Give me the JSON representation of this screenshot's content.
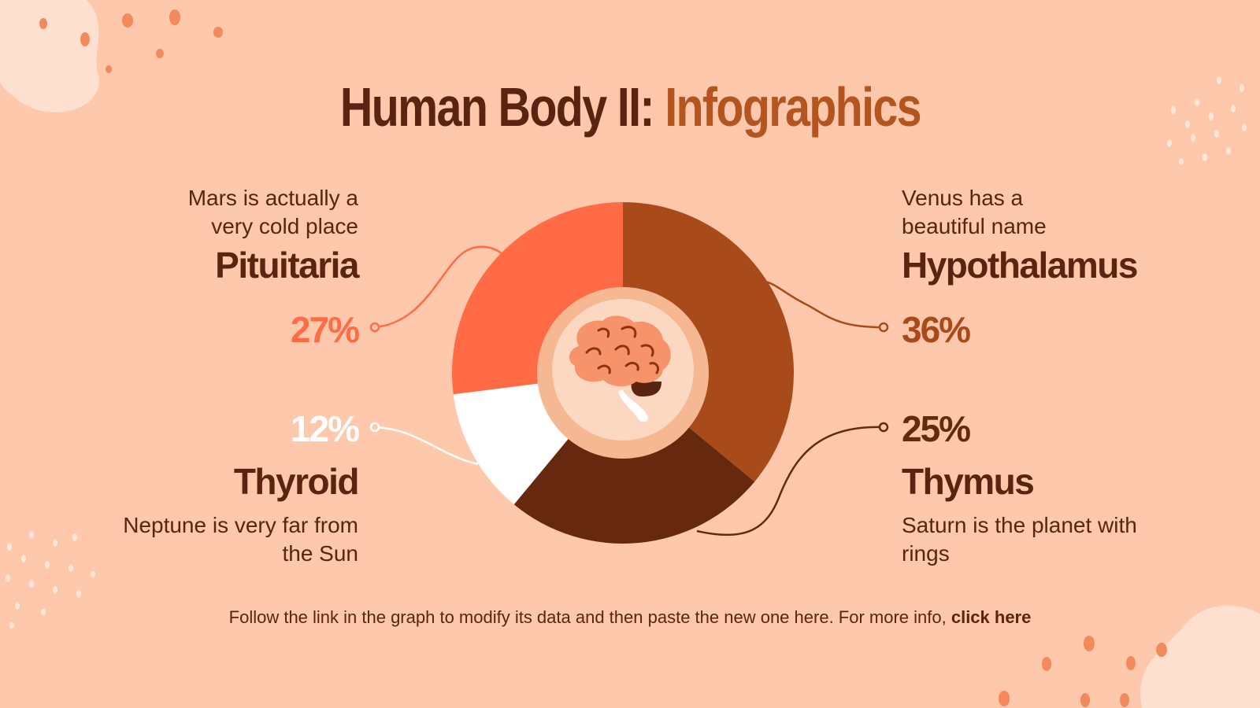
{
  "title": {
    "main": "Human Body II:",
    "accent": "Infographics"
  },
  "chart_data": {
    "type": "donut",
    "categories": [
      "Hypothalamus",
      "Thymus",
      "Thyroid",
      "Pituitaria"
    ],
    "values": [
      36,
      25,
      12,
      27
    ],
    "value_labels": [
      "36%",
      "25%",
      "12%",
      "27%"
    ],
    "colors": [
      "#a94a1a",
      "#66290f",
      "#ffffff",
      "#ff6b45"
    ],
    "descriptions": [
      "Venus has a beautiful name",
      "Saturn is the planet with rings",
      "Neptune is very far from the Sun",
      "Mars is actually a very cold place"
    ]
  },
  "footer": {
    "text": "Follow the link in the graph to modify its data and then paste the new one here. For more info, ",
    "link": "click here"
  }
}
